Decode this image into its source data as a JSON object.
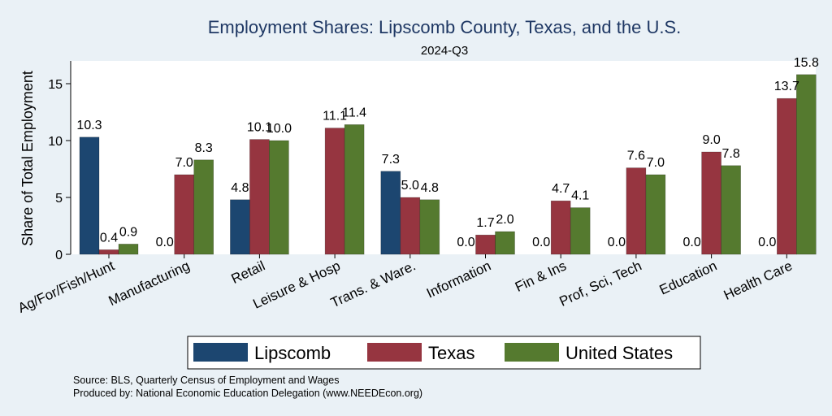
{
  "chart_data": {
    "type": "bar",
    "title": "Employment Shares: Lipscomb County, Texas, and the U.S.",
    "subtitle": "2024-Q3",
    "xlabel": "",
    "ylabel": "Share of Total Employment",
    "ylim": [
      0,
      17
    ],
    "yticks": [
      0,
      5,
      10,
      15
    ],
    "grid": false,
    "legend_position": "bottom",
    "categories": [
      "Ag/For/Fish/Hunt",
      "Manufacturing",
      "Retail",
      "Leisure & Hosp",
      "Trans. & Ware.",
      "Information",
      "Fin & Ins",
      "Prof, Sci, Tech",
      "Education",
      "Health Care"
    ],
    "series": [
      {
        "name": "Lipscomb",
        "color": "#1c4670",
        "values": [
          10.3,
          0.0,
          4.8,
          null,
          7.3,
          0.0,
          0.0,
          0.0,
          0.0,
          0.0
        ],
        "labels": [
          "10.3",
          "0.0",
          "4.8",
          "",
          "7.3",
          "0.0",
          "0.0",
          "0.0",
          "0.0",
          "0.0"
        ]
      },
      {
        "name": "Texas",
        "color": "#963540",
        "values": [
          0.4,
          7.0,
          10.1,
          11.1,
          5.0,
          1.7,
          4.7,
          7.6,
          9.0,
          13.7
        ],
        "labels": [
          "0.4",
          "7.0",
          "10.1",
          "11.1",
          "5.0",
          "1.7",
          "4.7",
          "7.6",
          "9.0",
          "13.7"
        ]
      },
      {
        "name": "United States",
        "color": "#557a2f",
        "values": [
          0.9,
          8.3,
          10.0,
          11.4,
          4.8,
          2.0,
          4.1,
          7.0,
          7.8,
          15.8
        ],
        "labels": [
          "0.9",
          "8.3",
          "10.0",
          "11.4",
          "4.8",
          "2.0",
          "4.1",
          "7.0",
          "7.8",
          "15.8"
        ]
      }
    ],
    "notes": [
      "Source: BLS, Quarterly Census of Employment and Wages",
      "Produced by: National Economic Education Delegation (www.NEEDEcon.org)"
    ]
  }
}
